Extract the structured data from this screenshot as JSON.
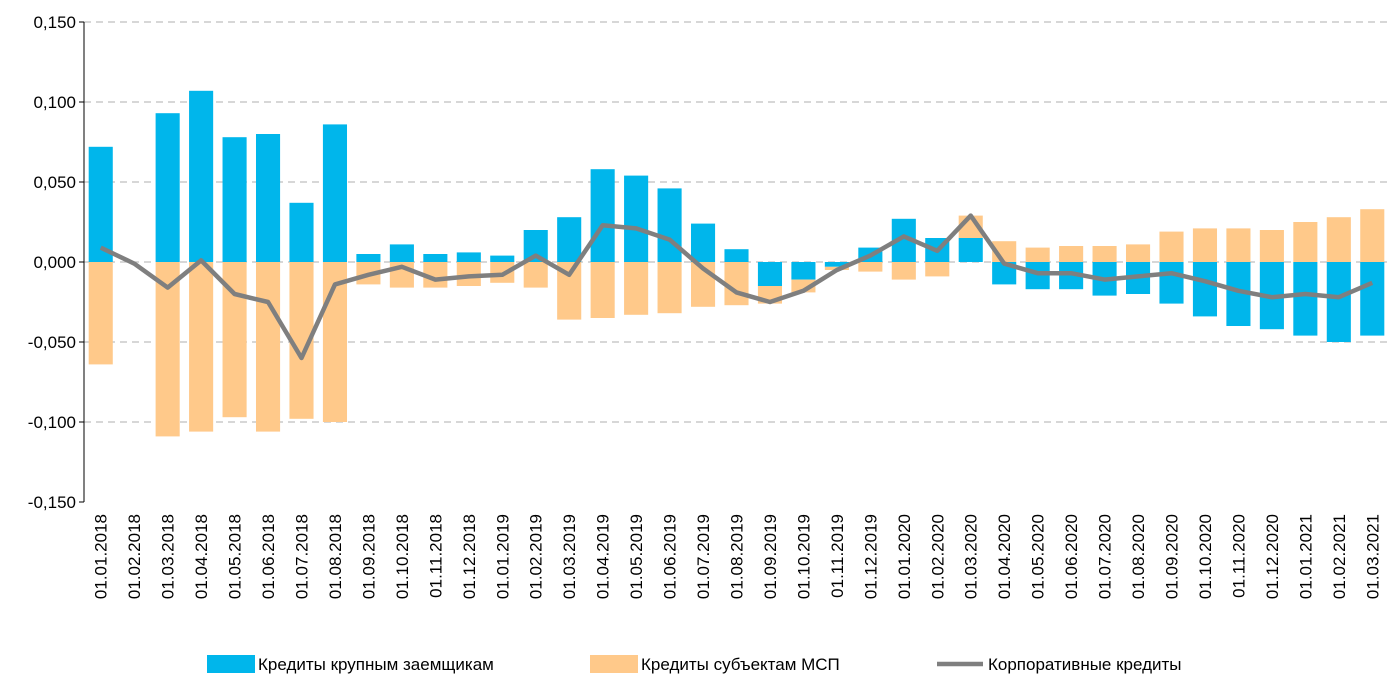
{
  "chart_data": {
    "type": "bar",
    "stacked": true,
    "categories": [
      "01.01.2018",
      "01.02.2018",
      "01.03.2018",
      "01.04.2018",
      "01.05.2018",
      "01.06.2018",
      "01.07.2018",
      "01.08.2018",
      "01.09.2018",
      "01.10.2018",
      "01.11.2018",
      "01.12.2018",
      "01.01.2019",
      "01.02.2019",
      "01.03.2019",
      "01.04.2019",
      "01.05.2019",
      "01.06.2019",
      "01.07.2019",
      "01.08.2019",
      "01.09.2019",
      "01.10.2019",
      "01.11.2019",
      "01.12.2019",
      "01.01.2020",
      "01.02.2020",
      "01.03.2020",
      "01.04.2020",
      "01.05.2020",
      "01.06.2020",
      "01.07.2020",
      "01.08.2020",
      "01.09.2020",
      "01.10.2020",
      "01.11.2020",
      "01.12.2020",
      "01.01.2021",
      "01.02.2021",
      "01.03.2021"
    ],
    "series": [
      {
        "name": "Кредиты крупным заемщикам",
        "type": "bar",
        "color": "#00b6eb",
        "values": [
          0.072,
          0,
          0.093,
          0.107,
          0.078,
          0.08,
          0.037,
          0.086,
          0.005,
          0.011,
          0.005,
          0.006,
          0.004,
          0.02,
          0.028,
          0.058,
          0.054,
          0.046,
          0.024,
          0.008,
          -0.015,
          -0.011,
          -0.003,
          0.009,
          0.027,
          0.015,
          0.015,
          -0.014,
          -0.017,
          -0.017,
          -0.021,
          -0.02,
          -0.026,
          -0.034,
          -0.04,
          -0.042,
          -0.046,
          -0.05,
          -0.046
        ]
      },
      {
        "name": "Кредиты субъектам МСП",
        "type": "bar",
        "color": "#ffc98a",
        "values": [
          -0.064,
          0,
          -0.109,
          -0.106,
          -0.097,
          -0.106,
          -0.098,
          -0.1,
          -0.014,
          -0.016,
          -0.016,
          -0.015,
          -0.013,
          -0.016,
          -0.036,
          -0.035,
          -0.033,
          -0.032,
          -0.028,
          -0.027,
          -0.011,
          -0.008,
          -0.002,
          -0.006,
          -0.011,
          -0.009,
          0.014,
          0.013,
          0.009,
          0.01,
          0.01,
          0.011,
          0.019,
          0.021,
          0.021,
          0.02,
          0.025,
          0.028,
          0.033
        ]
      },
      {
        "name": "Корпоративные кредиты",
        "type": "line",
        "color": "#7f7f7f",
        "values": [
          0.009,
          -0.001,
          -0.016,
          0.001,
          -0.02,
          -0.025,
          -0.06,
          -0.014,
          -0.008,
          -0.003,
          -0.011,
          -0.009,
          -0.008,
          0.004,
          -0.008,
          0.023,
          0.021,
          0.014,
          -0.004,
          -0.019,
          -0.025,
          -0.018,
          -0.005,
          0.004,
          0.016,
          0.007,
          0.029,
          -0.001,
          -0.007,
          -0.007,
          -0.011,
          -0.009,
          -0.007,
          -0.012,
          -0.018,
          -0.022,
          -0.02,
          -0.022,
          -0.013
        ]
      }
    ],
    "ylim": [
      -0.15,
      0.15
    ],
    "yticks": [
      {
        "value": -0.15,
        "label": "-0,150"
      },
      {
        "value": -0.1,
        "label": "-0,100"
      },
      {
        "value": -0.05,
        "label": "-0,050"
      },
      {
        "value": 0,
        "label": "0,000"
      },
      {
        "value": 0.05,
        "label": "0,050"
      },
      {
        "value": 0.1,
        "label": "0,100"
      },
      {
        "value": 0.15,
        "label": "0,150"
      }
    ],
    "grid": true,
    "legend": "bottom"
  }
}
